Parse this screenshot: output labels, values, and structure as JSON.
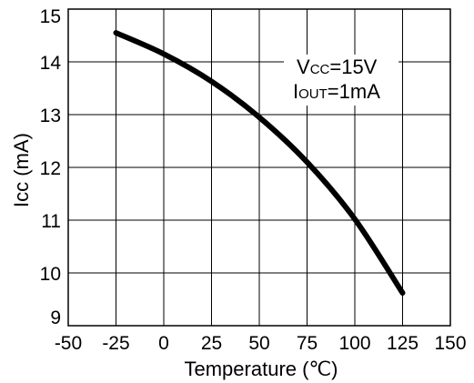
{
  "chart_data": {
    "type": "line",
    "xlabel": "Temperature (℃)",
    "ylabel": "Icc (mA)",
    "xlim": [
      -50,
      150
    ],
    "ylim": [
      9,
      15
    ],
    "xticks": [
      "-50",
      "-25",
      "0",
      "25",
      "50",
      "75",
      "100",
      "125",
      "150"
    ],
    "yticks": [
      "9",
      "10",
      "11",
      "12",
      "13",
      "14",
      "15"
    ],
    "grid": true,
    "annotations": [
      {
        "main": "V",
        "sub": "CC",
        "rest": "=15V"
      },
      {
        "main": "I",
        "sub": "OUT",
        "rest": "=1mA"
      }
    ],
    "series": [
      {
        "x": [
          -25,
          0,
          25,
          50,
          75,
          100,
          125
        ],
        "y": [
          14.55,
          14.15,
          13.63,
          12.95,
          12.1,
          11.02,
          9.62
        ]
      }
    ]
  }
}
